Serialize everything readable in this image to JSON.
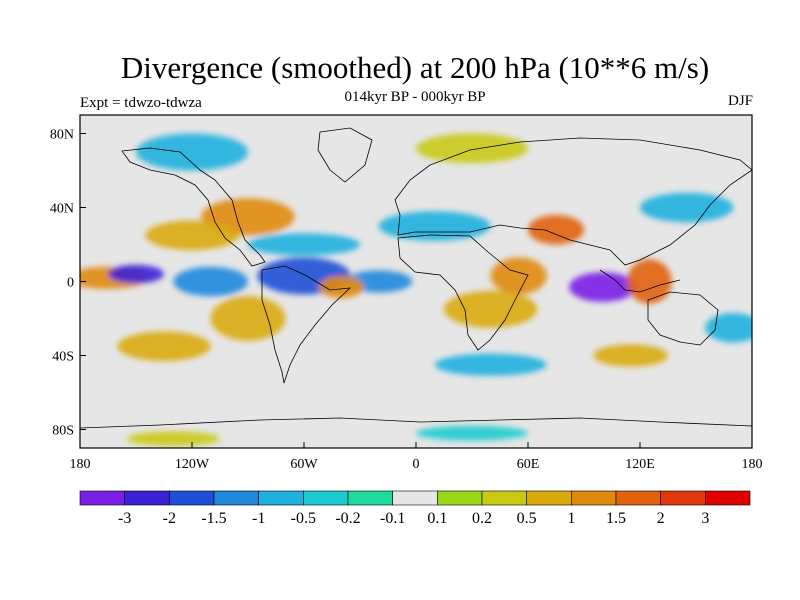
{
  "title": "Divergence (smoothed) at 200 hPa (10**6 m/s)",
  "subtitle": "014kyr BP - 000kyr BP",
  "left_label": "Expt = tdwzo-tdwza",
  "right_label": "DJF",
  "lat_axis": {
    "ticks": [
      80,
      40,
      0,
      -40,
      -80
    ],
    "labels": [
      "80N",
      "40N",
      "0",
      "40S",
      "80S"
    ],
    "range": [
      -90,
      90
    ]
  },
  "lon_axis": {
    "ticks": [
      -180,
      -120,
      -60,
      0,
      60,
      120,
      180
    ],
    "labels": [
      "180",
      "120W",
      "60W",
      "0",
      "60E",
      "120E",
      "180"
    ],
    "range": [
      -180,
      180
    ]
  },
  "colorbar": {
    "colors": [
      "#7a1fe6",
      "#3b22d6",
      "#1f4fd6",
      "#1e88dc",
      "#1fb0de",
      "#1ccbd0",
      "#22d9a0",
      "#e6e6e6",
      "#98d816",
      "#c9c914",
      "#d9aa0a",
      "#e08a0a",
      "#e0620c",
      "#e0380c",
      "#e00000"
    ],
    "labels": [
      "-3",
      "-2",
      "-1.5",
      "-1",
      "-0.5",
      "-0.2",
      "-0.1",
      "0.1",
      "0.2",
      "0.5",
      "1",
      "1.5",
      "2",
      "3"
    ]
  },
  "field": [
    {
      "lon": -165,
      "lat": 2,
      "v": 1.2,
      "rx": 22,
      "ry": 6
    },
    {
      "lon": -150,
      "lat": 4,
      "v": -2.2,
      "rx": 15,
      "ry": 5
    },
    {
      "lon": -110,
      "lat": 0,
      "v": -1.4,
      "rx": 20,
      "ry": 8
    },
    {
      "lon": -60,
      "lat": 3,
      "v": -1.6,
      "rx": 25,
      "ry": 10
    },
    {
      "lon": -20,
      "lat": 0,
      "v": -1.2,
      "rx": 18,
      "ry": 6
    },
    {
      "lon": -40,
      "lat": -3,
      "v": 1.4,
      "rx": 12,
      "ry": 6
    },
    {
      "lon": 55,
      "lat": 3,
      "v": 1.5,
      "rx": 15,
      "ry": 10
    },
    {
      "lon": 40,
      "lat": -15,
      "v": 0.8,
      "rx": 25,
      "ry": 10
    },
    {
      "lon": 100,
      "lat": -3,
      "v": -3.2,
      "rx": 18,
      "ry": 8
    },
    {
      "lon": 125,
      "lat": 0,
      "v": 1.6,
      "rx": 12,
      "ry": 12
    },
    {
      "lon": 75,
      "lat": 28,
      "v": 1.6,
      "rx": 15,
      "ry": 8
    },
    {
      "lon": -90,
      "lat": 35,
      "v": 1.2,
      "rx": 25,
      "ry": 10
    },
    {
      "lon": -120,
      "lat": 25,
      "v": 0.8,
      "rx": 25,
      "ry": 8
    },
    {
      "lon": -60,
      "lat": 20,
      "v": -0.7,
      "rx": 30,
      "ry": 6
    },
    {
      "lon": 10,
      "lat": 30,
      "v": -0.6,
      "rx": 30,
      "ry": 8
    },
    {
      "lon": 145,
      "lat": 40,
      "v": -0.6,
      "rx": 25,
      "ry": 8
    },
    {
      "lon": 170,
      "lat": -25,
      "v": -0.7,
      "rx": 15,
      "ry": 8
    },
    {
      "lon": -135,
      "lat": -35,
      "v": 0.9,
      "rx": 25,
      "ry": 8
    },
    {
      "lon": -90,
      "lat": -20,
      "v": 0.7,
      "rx": 20,
      "ry": 12
    },
    {
      "lon": 40,
      "lat": -45,
      "v": -0.6,
      "rx": 30,
      "ry": 6
    },
    {
      "lon": 115,
      "lat": -40,
      "v": 0.6,
      "rx": 20,
      "ry": 6
    },
    {
      "lon": -120,
      "lat": 70,
      "v": -0.6,
      "rx": 30,
      "ry": 10
    },
    {
      "lon": 30,
      "lat": 72,
      "v": 0.4,
      "rx": 30,
      "ry": 8
    },
    {
      "lon": -130,
      "lat": -85,
      "v": 0.3,
      "rx": 25,
      "ry": 4
    },
    {
      "lon": 30,
      "lat": -82,
      "v": -0.3,
      "rx": 30,
      "ry": 4
    }
  ]
}
